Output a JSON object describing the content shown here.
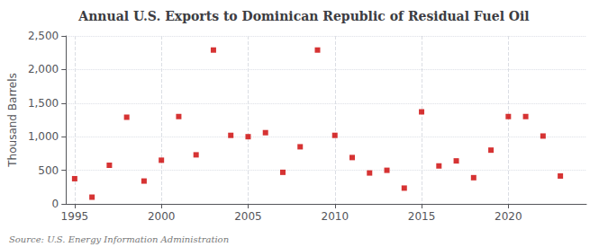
{
  "chart_data": {
    "type": "scatter",
    "title": "Annual U.S. Exports to Dominican Republic of Residual Fuel Oil",
    "ylabel": "Thousand Barrels",
    "annotation": "Source: U.S. Energy Information Administration",
    "x": [
      1995,
      1996,
      1997,
      1998,
      1999,
      2000,
      2001,
      2002,
      2003,
      2004,
      2005,
      2006,
      2007,
      2008,
      2009,
      2010,
      2011,
      2012,
      2013,
      2014,
      2015,
      2016,
      2017,
      2018,
      2019,
      2020,
      2021,
      2022,
      2023
    ],
    "values": [
      375,
      100,
      575,
      1290,
      340,
      650,
      1300,
      730,
      2290,
      1020,
      1000,
      1060,
      470,
      850,
      2290,
      1020,
      690,
      460,
      500,
      235,
      1370,
      565,
      640,
      390,
      800,
      1300,
      1300,
      1010,
      415
    ],
    "color": "#cc0000",
    "marker": "square",
    "xlim": [
      1994.5,
      2024.5
    ],
    "xticks": [
      1995,
      2000,
      2005,
      2010,
      2015,
      2020
    ],
    "ylim": [
      0,
      2500
    ],
    "yticks": [
      0,
      500,
      {
        "value": 1000,
        "label": "1,000"
      },
      {
        "value": 1500,
        "label": "1,500"
      },
      {
        "value": 2000,
        "label": "2,000"
      },
      {
        "value": 2500,
        "label": "2,500"
      }
    ],
    "grid": true
  }
}
